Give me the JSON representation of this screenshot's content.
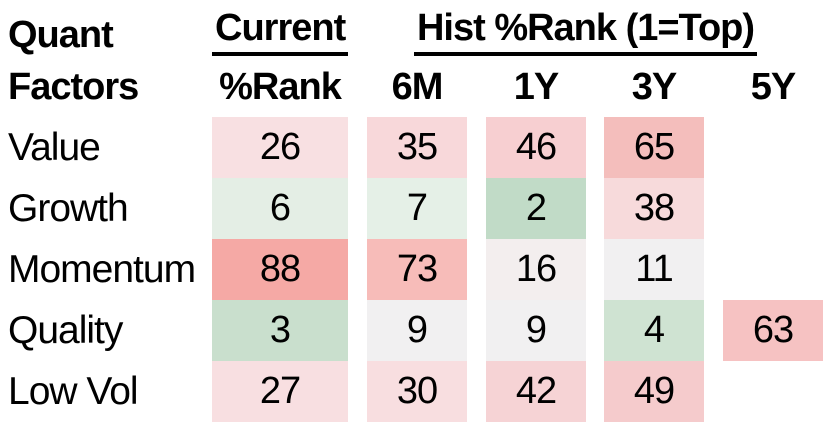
{
  "header": {
    "row_title_line1": "Quant",
    "row_title_line2": "Factors",
    "group_current": "Current",
    "group_hist": "Hist %Rank (1=Top)",
    "col_current": "%Rank",
    "col_6m": "6M",
    "col_1y": "1Y",
    "col_3y": "3Y",
    "col_5y": "5Y"
  },
  "rows": [
    {
      "label": "Value",
      "cells": [
        {
          "v": "26",
          "bg": "#f8e0e2"
        },
        {
          "v": "35",
          "bg": "#f8d8da"
        },
        {
          "v": "46",
          "bg": "#f7cfd1"
        },
        {
          "v": "65",
          "bg": "#f4bebc"
        },
        {
          "v": "",
          "bg": ""
        }
      ]
    },
    {
      "label": "Growth",
      "cells": [
        {
          "v": "6",
          "bg": "#e4eee5"
        },
        {
          "v": "7",
          "bg": "#e5f0e7"
        },
        {
          "v": "2",
          "bg": "#c1dbc7"
        },
        {
          "v": "38",
          "bg": "#f7dadb"
        },
        {
          "v": "",
          "bg": ""
        }
      ]
    },
    {
      "label": "Momentum",
      "cells": [
        {
          "v": "88",
          "bg": "#f5a9a5"
        },
        {
          "v": "73",
          "bg": "#f7bcb9"
        },
        {
          "v": "16",
          "bg": "#f3eeee"
        },
        {
          "v": "11",
          "bg": "#f1f0f1"
        },
        {
          "v": "",
          "bg": ""
        }
      ]
    },
    {
      "label": "Quality",
      "cells": [
        {
          "v": "3",
          "bg": "#c9dfcd"
        },
        {
          "v": "9",
          "bg": "#f1f0f1"
        },
        {
          "v": "9",
          "bg": "#f1f0f1"
        },
        {
          "v": "4",
          "bg": "#cfe3d2"
        },
        {
          "v": "63",
          "bg": "#f6c2c2"
        }
      ]
    },
    {
      "label": "Low Vol",
      "cells": [
        {
          "v": "27",
          "bg": "#f8dfe1"
        },
        {
          "v": "30",
          "bg": "#f8dee0"
        },
        {
          "v": "42",
          "bg": "#f6d3d5"
        },
        {
          "v": "49",
          "bg": "#f5cbcc"
        },
        {
          "v": "",
          "bg": ""
        }
      ]
    }
  ],
  "chart_data": {
    "type": "heatmap",
    "title": "Quant Factors",
    "scale_note": "1=Top",
    "rows": [
      "Value",
      "Growth",
      "Momentum",
      "Quality",
      "Low Vol"
    ],
    "columns": [
      "Current %Rank",
      "6M",
      "1Y",
      "3Y",
      "5Y"
    ],
    "values": [
      [
        26,
        35,
        46,
        65,
        null
      ],
      [
        6,
        7,
        2,
        38,
        null
      ],
      [
        88,
        73,
        16,
        11,
        null
      ],
      [
        3,
        9,
        9,
        4,
        63
      ],
      [
        27,
        30,
        42,
        49,
        null
      ]
    ],
    "color_scale": {
      "low_green": "#c1dbc7",
      "mid_neutral": "#f1f0f1",
      "high_red": "#f5a9a5"
    },
    "legend_position": "none",
    "grid": false
  }
}
